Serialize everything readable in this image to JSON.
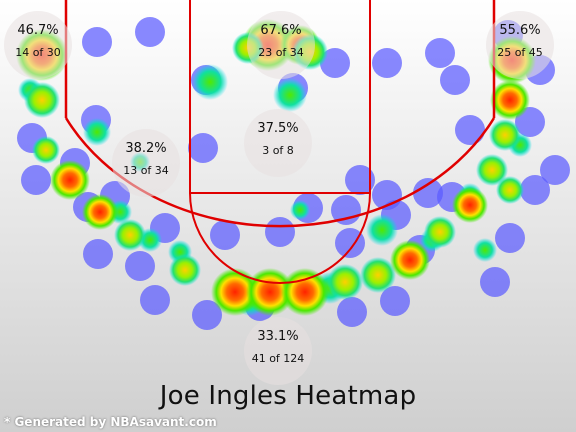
{
  "title": "Joe Ingles Heatmap",
  "credit": "* Generated by NBAsavant.com",
  "colors": {
    "court_lines": "#e00000",
    "hot": "#ff2a00",
    "warm": "#ffd800",
    "mid": "#5fe800",
    "cool": "#00e8e0",
    "cold": "#5b5bff"
  },
  "chart_data": {
    "type": "heatmap",
    "title": "Joe Ingles Heatmap",
    "zones": [
      {
        "zone": "left-corner-three",
        "pct": "46.7%",
        "made": 14,
        "attempts": 30
      },
      {
        "zone": "paint",
        "pct": "67.6%",
        "made": 23,
        "attempts": 34
      },
      {
        "zone": "right-corner-three",
        "pct": "55.6%",
        "made": 25,
        "attempts": 45
      },
      {
        "zone": "left-mid-range",
        "pct": "38.2%",
        "made": 13,
        "attempts": 34
      },
      {
        "zone": "mid-range",
        "pct": "37.5%",
        "made": 3,
        "attempts": 8
      },
      {
        "zone": "above-break-three",
        "pct": "33.1%",
        "made": 41,
        "attempts": 124
      }
    ],
    "zone_labels": [
      {
        "pct": "46.7%",
        "count": "14 of 30"
      },
      {
        "pct": "67.6%",
        "count": "23 of 34"
      },
      {
        "pct": "55.6%",
        "count": "25 of 45"
      },
      {
        "pct": "38.2%",
        "count": "13 of 34"
      },
      {
        "pct": "37.5%",
        "count": "3 of 8"
      },
      {
        "pct": "33.1%",
        "count": "41 of 124"
      }
    ]
  }
}
